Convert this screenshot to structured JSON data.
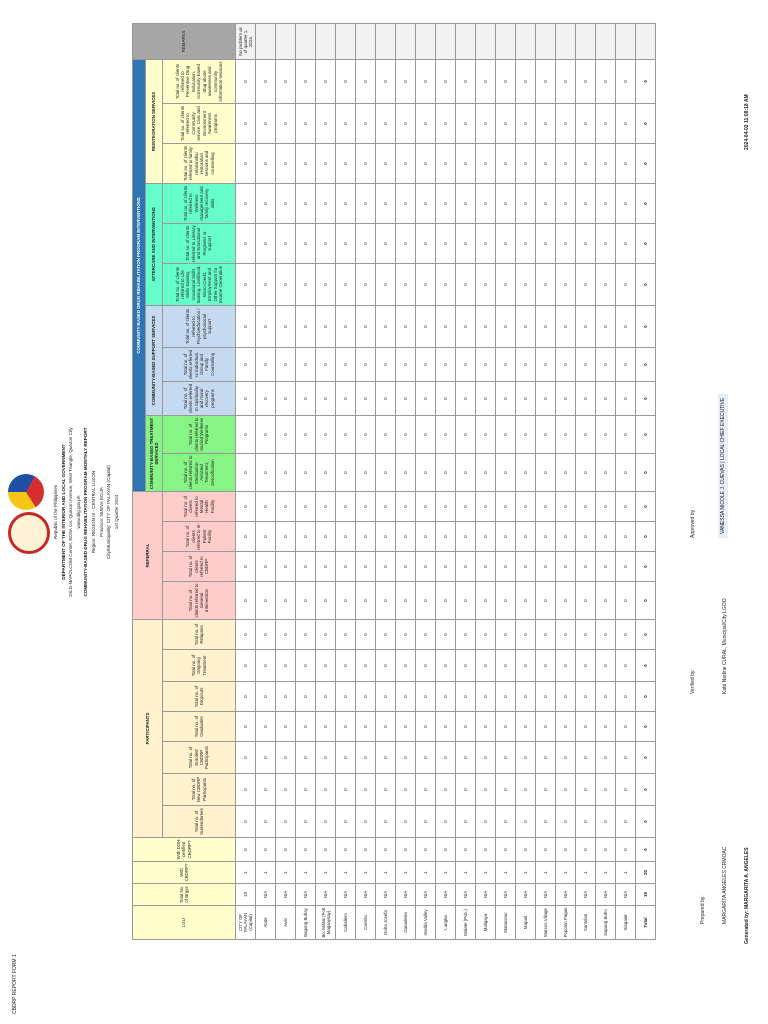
{
  "form_code": "CBDRP REPORT FORM 1",
  "header": {
    "lines": [
      "Republic of the Philippines",
      "DEPARTMENT OF THE INTERIOR AND LOCAL GOVERNMENT",
      "DILG-NAPOLCOM Center, EDSA cor. Quezon Avenue, West Triangle, Quezon City",
      "www.dilg.gov.ph",
      "COMMUNITY-BASED DRUG REHABILITATION PROGRAM MONTHLY REPORT",
      "Region: REGION III - CENTRAL LUZON",
      "Province: NUEVA ECIJA",
      "City/Municipality: CITY OF PALAYAN (Capital)",
      "1st Quarter 2024"
    ]
  },
  "table": {
    "groups": [
      "PARTICIPANTS",
      "REFERRAL",
      "COMMUNITY-BASED DRUG REHABILITATION PROGRAM INTERVENTIONS"
    ],
    "subgroups": [
      "COMMUNITY-BASED TREATMENT SERVICES",
      "COMMUNITY-BASED SUPPORT SERVICES",
      "AFTERCARE AND INTERVENTIONS",
      "REINTEGRATION SERVICES"
    ],
    "columns": [
      "LGU",
      "Total No. of Brgys",
      "With CBDRP?",
      "With DOH certified CBDRP?",
      "Total no. of Surrenderees",
      "Total no. of New CBDRP Participants",
      "Total no. of Enrolled CBDRP Participants",
      "Total no. of Graduates",
      "Total no. of Dropouts",
      "Total no. of Ongoing Treatment",
      "Total no. of Relapses",
      "Total no. of clients referred to General Intervention",
      "Total no. of clients referred to CBDRP",
      "Total no. of clients referred to In-Patient Facility",
      "Total no. of clients referred to Mental Health Facility",
      "Total no. of clients referred to Medication-Assisted Treatment, Detoxification",
      "Total no. of clients referred to Sacred Wellness Programs",
      "Total no. of clients referred to Spirituality and moral recovery programs",
      "Total no. of clients referred to Individual, Group and Family Counselling",
      "Total no. of clients referred to Psychoeducation / psychosocial support",
      "Total no. of clients referred to Life Skills training, Vocational Skills training, Livelihood, Micro-Credit, Employment and Other Support for Income Generation",
      "Total no. of clients referred to Literacy and Educational Programs or support",
      "Total no. of clients referred to Wellness management and family recovery skills",
      "Total no. of clients referred to family relationship restoration sessions and counselling",
      "Total no. of clients referred to Community service, Civic and Environment Awareness programs",
      "Total no. of clients referred to Preventive Drug Education, community-based drug abuse awareness and community information sessions",
      "REMARKS"
    ],
    "rows": [
      [
        "CITY OF PALAYAN (Capital)",
        19,
        1,
        0,
        0,
        0,
        0,
        0,
        0,
        0,
        0,
        0,
        0,
        0,
        0,
        0,
        0,
        0,
        0,
        0,
        0,
        0,
        0,
        0,
        0,
        0,
        "No problem as of quarter 1, 2024."
      ],
      [
        "Atate",
        "N/A",
        1,
        0,
        0,
        0,
        0,
        0,
        0,
        0,
        0,
        0,
        0,
        0,
        0,
        0,
        0,
        0,
        0,
        0,
        0,
        0,
        0,
        0,
        0,
        0,
        null
      ],
      [
        "Aulo",
        "N/A",
        1,
        0,
        0,
        0,
        0,
        0,
        0,
        0,
        0,
        0,
        0,
        0,
        0,
        0,
        0,
        0,
        0,
        0,
        0,
        0,
        0,
        0,
        0,
        0,
        null
      ],
      [
        "Bagong Buhay",
        "N/A",
        1,
        0,
        0,
        0,
        0,
        0,
        0,
        0,
        0,
        0,
        0,
        0,
        0,
        0,
        0,
        0,
        0,
        0,
        0,
        0,
        0,
        0,
        0,
        0,
        null
      ],
      [
        "Bo. Militar (Fort Magsaysay)",
        "N/A",
        1,
        0,
        0,
        0,
        0,
        0,
        0,
        0,
        0,
        0,
        0,
        0,
        0,
        0,
        0,
        0,
        0,
        0,
        0,
        0,
        0,
        0,
        0,
        0,
        null
      ],
      [
        "Caballero",
        "N/A",
        1,
        0,
        0,
        0,
        0,
        0,
        0,
        0,
        0,
        0,
        0,
        0,
        0,
        0,
        0,
        0,
        0,
        0,
        0,
        0,
        0,
        0,
        0,
        0,
        null
      ],
      [
        "Caimito",
        "N/A",
        1,
        0,
        0,
        0,
        0,
        0,
        0,
        0,
        0,
        0,
        0,
        0,
        0,
        0,
        0,
        0,
        0,
        0,
        0,
        0,
        0,
        0,
        0,
        0,
        null
      ],
      [
        "Doña Josefa",
        "N/A",
        1,
        0,
        0,
        0,
        0,
        0,
        0,
        0,
        0,
        0,
        0,
        0,
        0,
        0,
        0,
        0,
        0,
        0,
        0,
        0,
        0,
        0,
        0,
        0,
        null
      ],
      [
        "Ganaderia",
        "N/A",
        1,
        0,
        0,
        0,
        0,
        0,
        0,
        0,
        0,
        0,
        0,
        0,
        0,
        0,
        0,
        0,
        0,
        0,
        0,
        0,
        0,
        0,
        0,
        0,
        null
      ],
      [
        "Imelda Valley",
        "N/A",
        1,
        0,
        0,
        0,
        0,
        0,
        0,
        0,
        0,
        0,
        0,
        0,
        0,
        0,
        0,
        0,
        0,
        0,
        0,
        0,
        0,
        0,
        0,
        0,
        null
      ],
      [
        "Langka",
        "N/A",
        1,
        0,
        0,
        0,
        0,
        0,
        0,
        0,
        0,
        0,
        0,
        0,
        0,
        0,
        0,
        0,
        0,
        0,
        0,
        0,
        0,
        0,
        0,
        0,
        null
      ],
      [
        "Malate (Pob.)",
        "N/A",
        1,
        0,
        0,
        0,
        0,
        0,
        0,
        0,
        0,
        0,
        0,
        0,
        0,
        0,
        0,
        0,
        0,
        0,
        0,
        0,
        0,
        0,
        0,
        0,
        null
      ],
      [
        "Maligaya",
        "N/A",
        1,
        0,
        0,
        0,
        0,
        0,
        0,
        0,
        0,
        0,
        0,
        0,
        0,
        0,
        0,
        0,
        0,
        0,
        0,
        0,
        0,
        0,
        0,
        0,
        null
      ],
      [
        "Manacnac",
        "N/A",
        1,
        0,
        0,
        0,
        0,
        0,
        0,
        0,
        0,
        0,
        0,
        0,
        0,
        0,
        0,
        0,
        0,
        0,
        0,
        0,
        0,
        0,
        0,
        0,
        null
      ],
      [
        "Mapait",
        "N/A",
        1,
        0,
        0,
        0,
        0,
        0,
        0,
        0,
        0,
        0,
        0,
        0,
        0,
        0,
        0,
        0,
        0,
        0,
        0,
        0,
        0,
        0,
        0,
        0,
        null
      ],
      [
        "Marcos Village",
        "N/A",
        1,
        0,
        0,
        0,
        0,
        0,
        0,
        0,
        0,
        0,
        0,
        0,
        0,
        0,
        0,
        0,
        0,
        0,
        0,
        0,
        0,
        0,
        0,
        0,
        null
      ],
      [
        "Popolon Pagas",
        "N/A",
        1,
        0,
        0,
        0,
        0,
        0,
        0,
        0,
        0,
        0,
        0,
        0,
        0,
        0,
        0,
        0,
        0,
        0,
        0,
        0,
        0,
        0,
        0,
        0,
        null
      ],
      [
        "Santolan",
        "N/A",
        1,
        0,
        0,
        0,
        0,
        0,
        0,
        0,
        0,
        0,
        0,
        0,
        0,
        0,
        0,
        0,
        0,
        0,
        0,
        0,
        0,
        0,
        0,
        0,
        null
      ],
      [
        "Sapang Buho",
        "N/A",
        1,
        0,
        0,
        0,
        0,
        0,
        0,
        0,
        0,
        0,
        0,
        0,
        0,
        0,
        0,
        0,
        0,
        0,
        0,
        0,
        0,
        0,
        0,
        0,
        null
      ],
      [
        "Singalat",
        "N/A",
        1,
        0,
        0,
        0,
        0,
        0,
        0,
        0,
        0,
        0,
        0,
        0,
        0,
        0,
        0,
        0,
        0,
        0,
        0,
        0,
        0,
        0,
        0,
        0,
        null
      ],
      [
        "Total",
        19,
        20,
        0,
        0,
        0,
        0,
        0,
        0,
        0,
        0,
        0,
        0,
        0,
        0,
        0,
        0,
        0,
        0,
        0,
        0,
        0,
        0,
        0,
        0,
        0,
        null
      ]
    ]
  },
  "footer": {
    "prepared_label": "Prepared by:",
    "prepared_name": "MARGARITA ANGELES CRMOAC",
    "verified_label": "Verified by:",
    "verified_name": "Kate Nadine CURAL, Municipal/City LGOO",
    "approved_label": "Approved by :",
    "approved_name": "VANESSA NICOLE J. CUEVAS | LOCAL CHIEF EXECUTIVE",
    "generated": "Generated by: MARGARITA A. ANGELES",
    "timestamp": "2024-04-02 11:08:18 AM"
  }
}
